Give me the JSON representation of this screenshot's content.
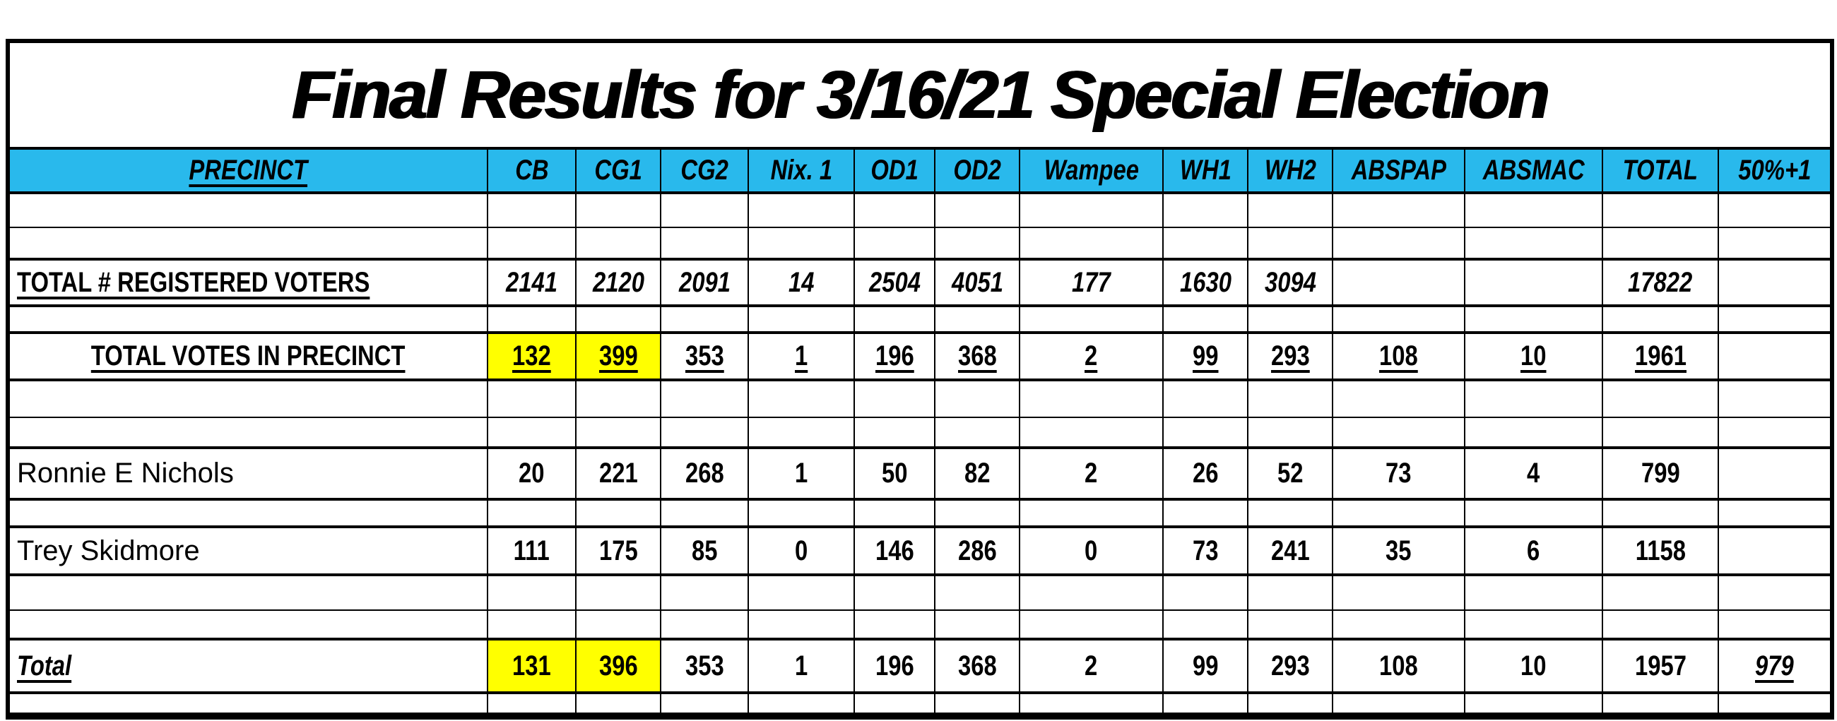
{
  "title": "Final Results for 3/16/21 Special Election",
  "colors": {
    "header_bg": "#29B9EC",
    "highlight": "#FFFF00",
    "grid": "#000000",
    "page_bg": "#FFFFFF"
  },
  "table": {
    "precinct_header": "PRECINCT",
    "columns": [
      "CB",
      "CG1",
      "CG2",
      "Nix. 1",
      "OD1",
      "OD2",
      "Wampee",
      "WH1",
      "WH2",
      "ABSPAP",
      "ABSMAC",
      "TOTAL",
      "50%+1"
    ],
    "rows": {
      "registered": {
        "label": "TOTAL # REGISTERED VOTERS",
        "values": [
          "2141",
          "2120",
          "2091",
          "14",
          "2504",
          "4051",
          "177",
          "1630",
          "3094",
          "",
          "",
          "17822",
          ""
        ]
      },
      "precinct_votes": {
        "label": "TOTAL VOTES IN PRECINCT",
        "values": [
          "132",
          "399",
          "353",
          "1",
          "196",
          "368",
          "2",
          "99",
          "293",
          "108",
          "10",
          "1961",
          ""
        ]
      },
      "nichols": {
        "label": "Ronnie E Nichols",
        "values": [
          "20",
          "221",
          "268",
          "1",
          "50",
          "82",
          "2",
          "26",
          "52",
          "73",
          "4",
          "799",
          ""
        ]
      },
      "skidmore": {
        "label": "Trey Skidmore",
        "values": [
          "111",
          "175",
          "85",
          "0",
          "146",
          "286",
          "0",
          "73",
          "241",
          "35",
          "6",
          "1158",
          ""
        ]
      },
      "total": {
        "label": "Total",
        "values": [
          "131",
          "396",
          "353",
          "1",
          "196",
          "368",
          "2",
          "99",
          "293",
          "108",
          "10",
          "1957",
          "979"
        ]
      }
    },
    "highlighted_cells": {
      "precinct_votes": [
        "CB",
        "CG1"
      ],
      "total": [
        "CB",
        "CG1"
      ]
    }
  }
}
